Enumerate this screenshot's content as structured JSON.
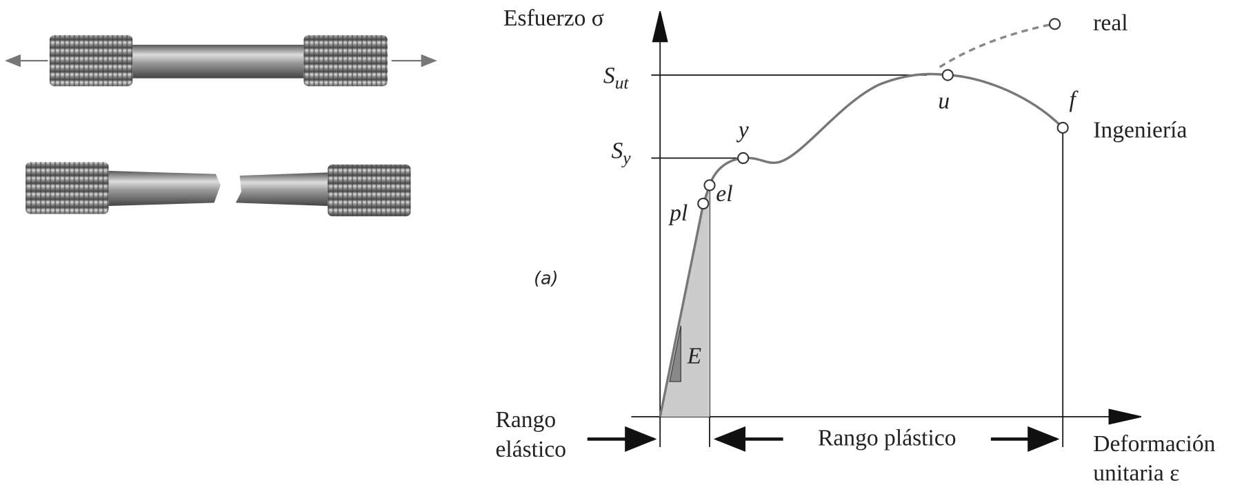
{
  "diagram": {
    "y_axis_label": "Esfuerzo σ",
    "x_axis_label": [
      "Deformación",
      "unitaria ε"
    ],
    "panel_label": "(a)",
    "levels": [
      {
        "symbol": "S",
        "subscript": "ut"
      },
      {
        "symbol": "S",
        "subscript": "y"
      }
    ],
    "points": {
      "yield": "y",
      "elastic_limit": "el",
      "proportional_limit": "pl",
      "ultimate": "u",
      "fracture": "f"
    },
    "curves": {
      "true": "real",
      "engineering": "Ingeniería"
    },
    "modulus": "E",
    "ranges": {
      "elastic": [
        "Rango",
        "elástico"
      ],
      "plastic": "Rango plástico"
    }
  }
}
